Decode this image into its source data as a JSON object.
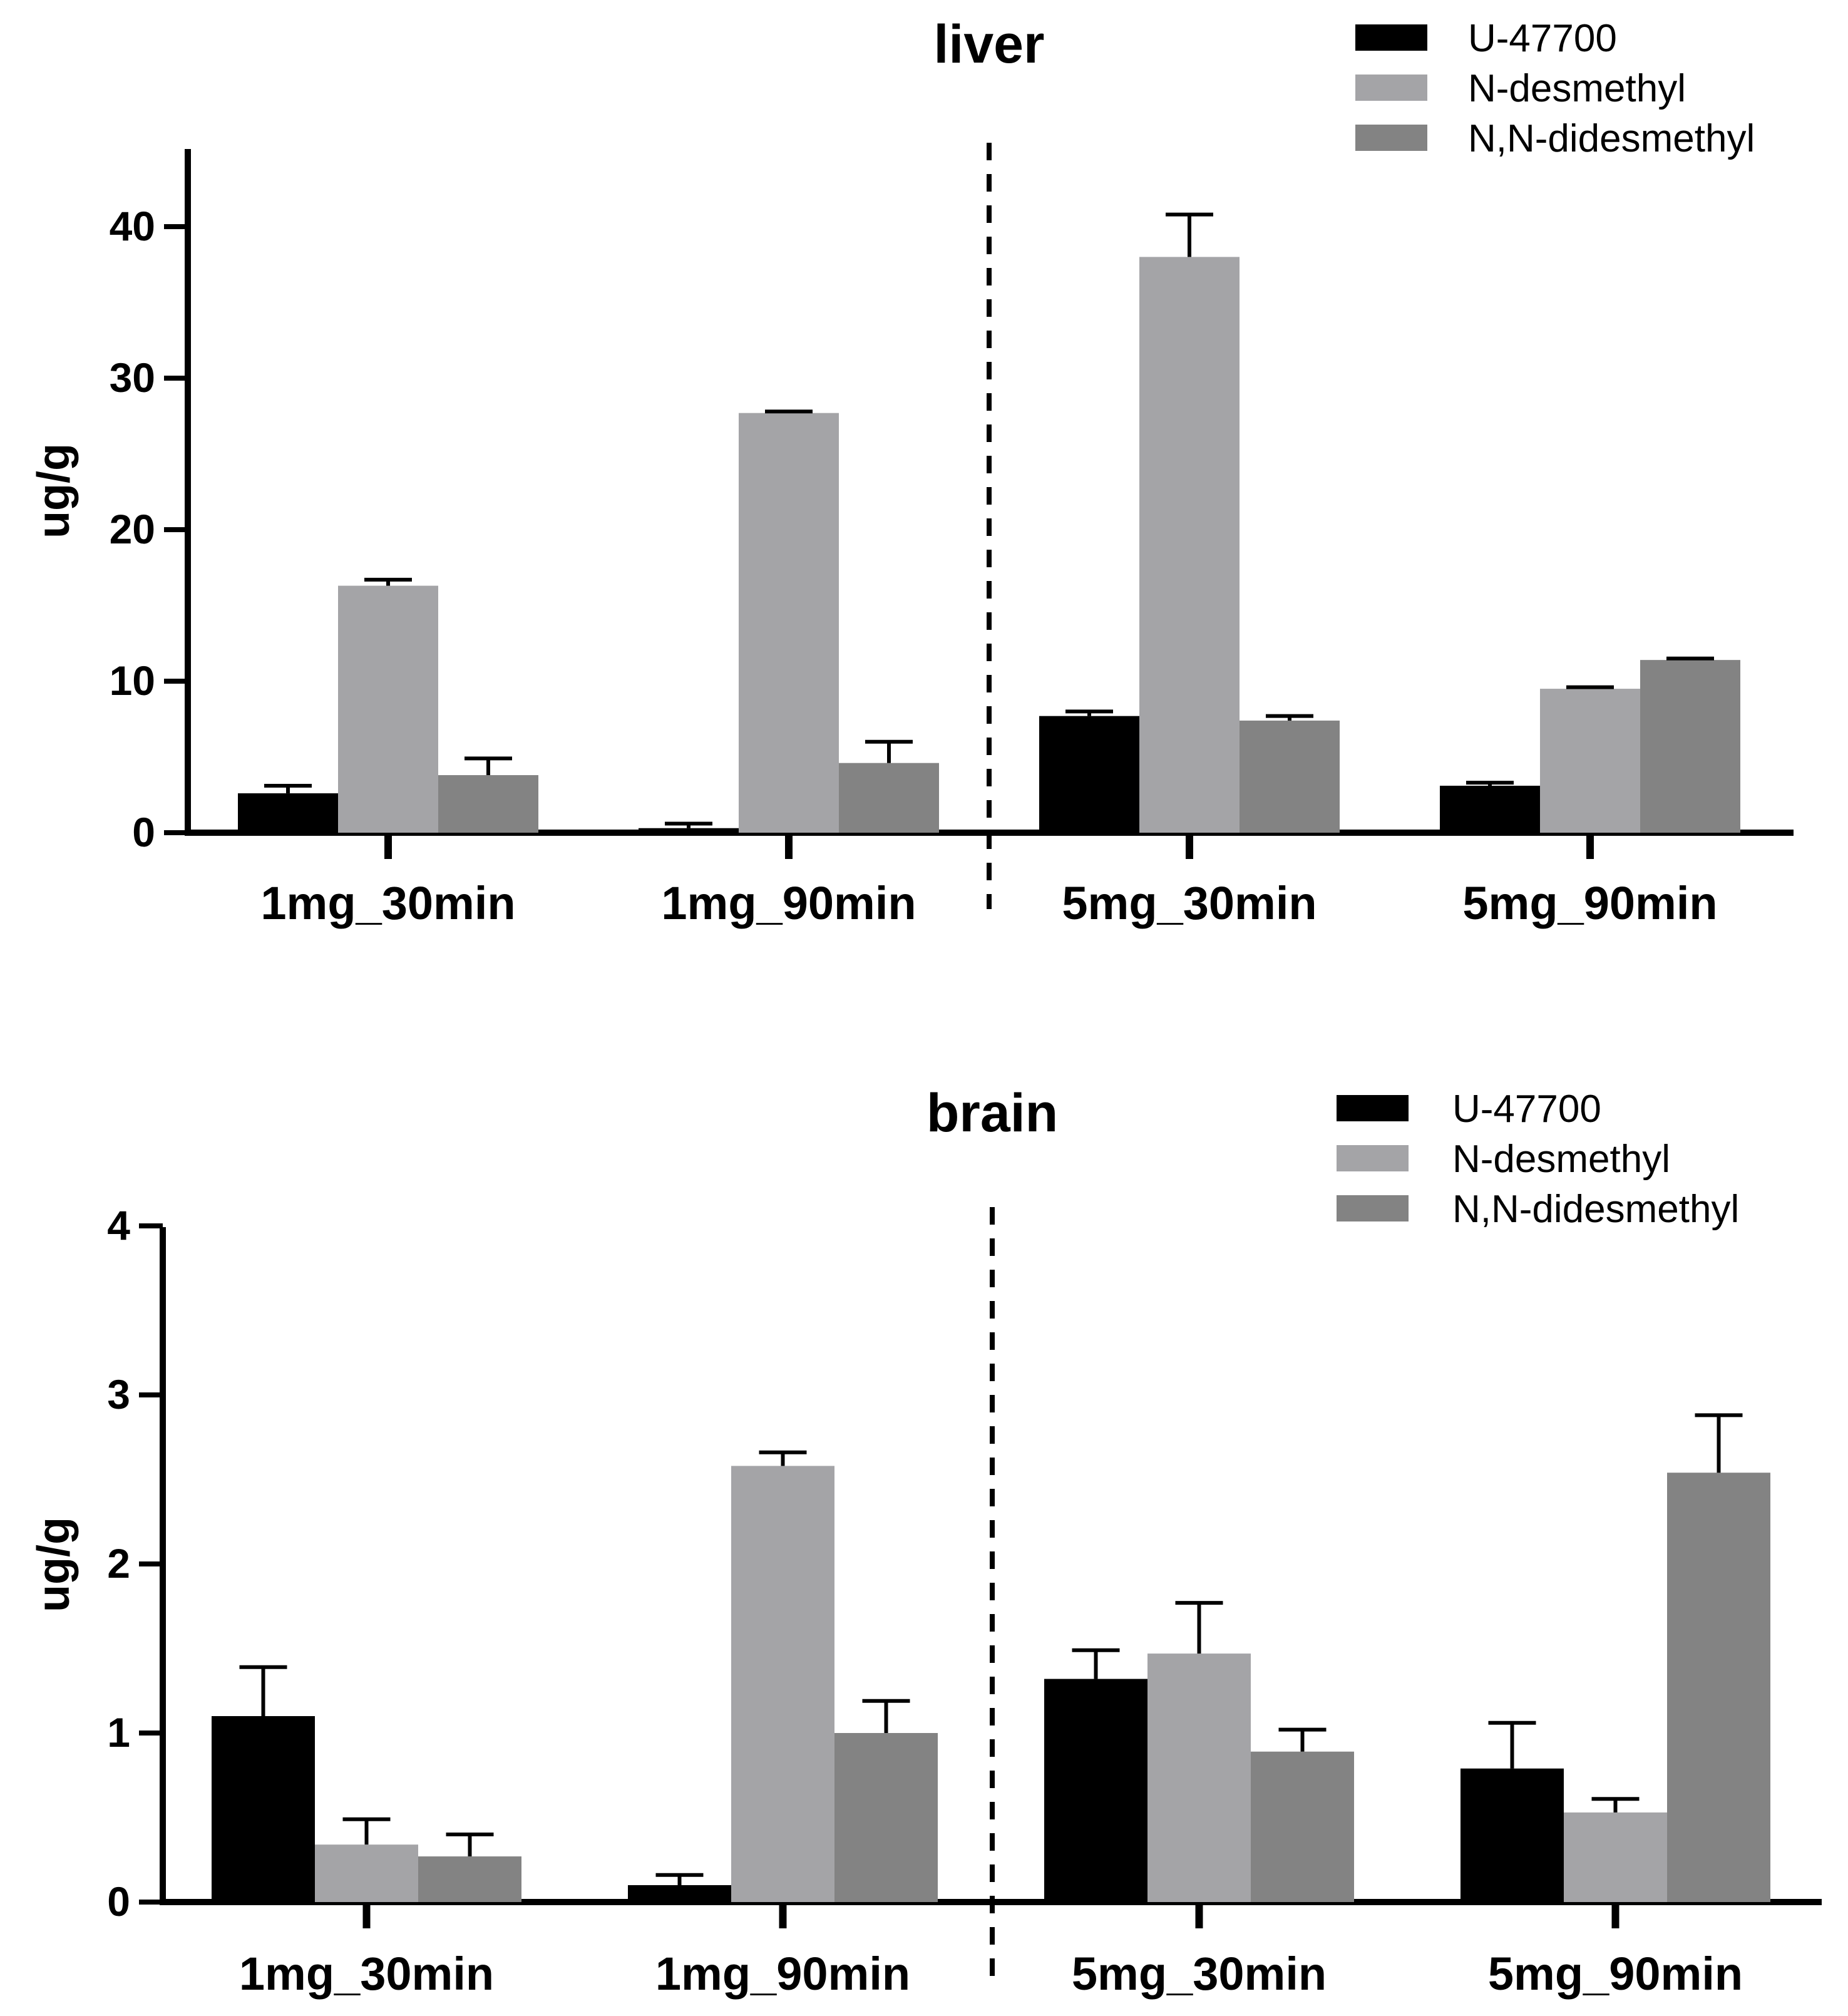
{
  "colors": {
    "U-47700": "#000000",
    "N-desmethyl": "#a4a4a7",
    "N,N-didesmethyl": "#838383",
    "axis": "#000000"
  },
  "chart_data": [
    {
      "type": "bar",
      "title": "liver",
      "ylabel": "ug/g",
      "xlabel": "",
      "ylim": [
        0,
        45
      ],
      "yticks": [
        0,
        10,
        20,
        30,
        40
      ],
      "categories": [
        "1mg_30min",
        "1mg_90min",
        "5mg_30min",
        "5mg_90min"
      ],
      "legend_position": "top-right",
      "divider_after_category": 1,
      "series": [
        {
          "name": "U-47700",
          "values": [
            2.6,
            0.3,
            7.7,
            3.1
          ],
          "errors": [
            0.5,
            0.3,
            0.3,
            0.2
          ]
        },
        {
          "name": "N-desmethyl",
          "values": [
            16.3,
            27.7,
            38.0,
            9.5
          ],
          "errors": [
            0.4,
            0.1,
            2.8,
            0.1
          ]
        },
        {
          "name": "N,N-didesmethyl",
          "values": [
            3.8,
            4.6,
            7.4,
            11.4
          ],
          "errors": [
            1.1,
            1.4,
            0.3,
            0.1
          ]
        }
      ]
    },
    {
      "type": "bar",
      "title": "brain",
      "ylabel": "ug/g",
      "xlabel": "",
      "ylim": [
        0,
        4
      ],
      "yticks": [
        0,
        1,
        2,
        3,
        4
      ],
      "categories": [
        "1mg_30min",
        "1mg_90min",
        "5mg_30min",
        "5mg_90min"
      ],
      "legend_position": "top-right",
      "divider_after_category": 1,
      "series": [
        {
          "name": "U-47700",
          "values": [
            1.1,
            0.1,
            1.32,
            0.79
          ],
          "errors": [
            0.29,
            0.06,
            0.17,
            0.27
          ]
        },
        {
          "name": "N-desmethyl",
          "values": [
            0.34,
            2.58,
            1.47,
            0.53
          ],
          "errors": [
            0.15,
            0.08,
            0.3,
            0.08
          ]
        },
        {
          "name": "N,N-didesmethyl",
          "values": [
            0.27,
            1.0,
            0.89,
            2.54
          ],
          "errors": [
            0.13,
            0.19,
            0.13,
            0.34
          ]
        }
      ]
    }
  ]
}
